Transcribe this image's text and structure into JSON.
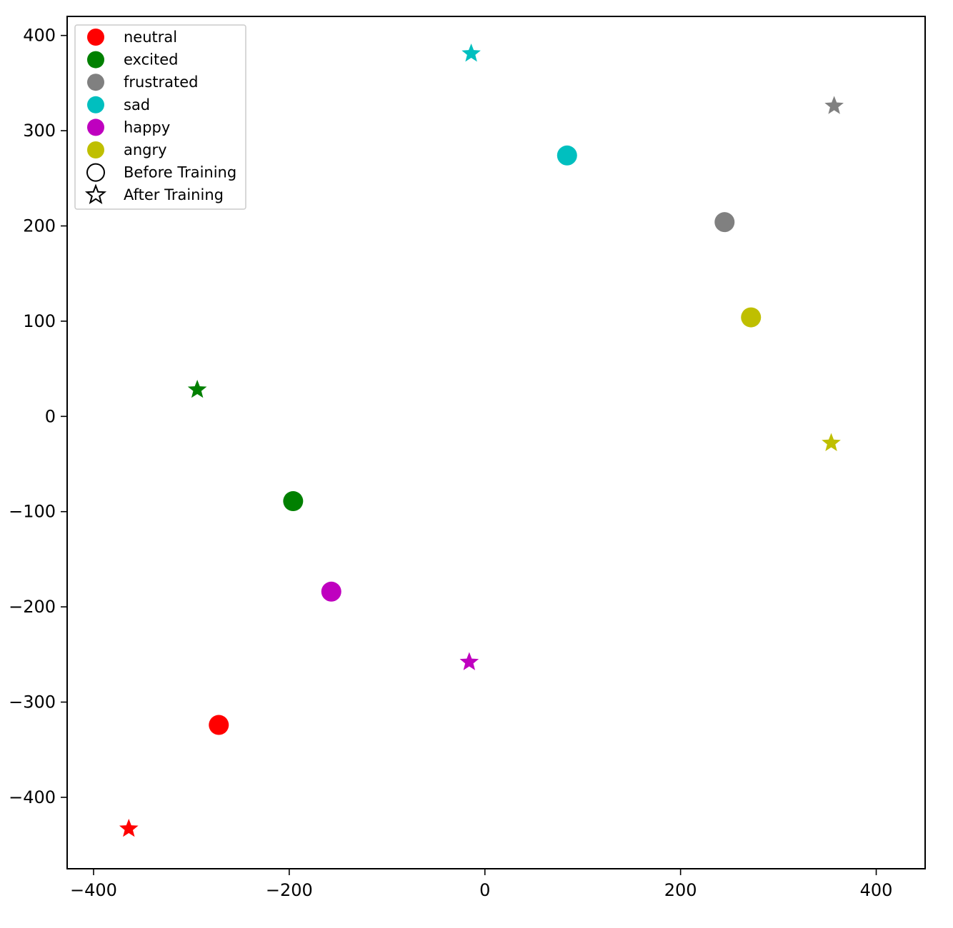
{
  "chart_data": {
    "type": "scatter",
    "title": "",
    "xlabel": "",
    "ylabel": "",
    "xlim": [
      -427,
      450
    ],
    "ylim": [
      -475,
      420
    ],
    "xticks": [
      -400,
      -200,
      0,
      200,
      400
    ],
    "yticks": [
      400,
      300,
      200,
      100,
      0,
      -100,
      -200,
      -300,
      -400
    ],
    "xtick_labels": [
      "−400",
      "−200",
      "0",
      "200",
      "400"
    ],
    "ytick_labels": [
      "400",
      "300",
      "200",
      "100",
      "0",
      "−100",
      "−200",
      "−300",
      "−400"
    ],
    "grid": false,
    "legend_position": "top-left",
    "series": [
      {
        "name": "neutral",
        "color": "#ff0000",
        "before": [
          -272,
          -324
        ],
        "after": [
          -364,
          -433
        ]
      },
      {
        "name": "excited",
        "color": "#008000",
        "before": [
          -196,
          -89
        ],
        "after": [
          -294,
          28
        ]
      },
      {
        "name": "frustrated",
        "color": "#808080",
        "before": [
          245,
          204
        ],
        "after": [
          357,
          326
        ]
      },
      {
        "name": "sad",
        "color": "#00bfbf",
        "before": [
          84,
          274
        ],
        "after": [
          -14,
          381
        ]
      },
      {
        "name": "happy",
        "color": "#bf00bf",
        "before": [
          -157,
          -184
        ],
        "after": [
          -16,
          -258
        ]
      },
      {
        "name": "angry",
        "color": "#bfbf00",
        "before": [
          272,
          104
        ],
        "after": [
          354,
          -28
        ]
      }
    ],
    "marker_legend": [
      {
        "name": "Before Training",
        "marker": "circle"
      },
      {
        "name": "After Training",
        "marker": "star"
      }
    ]
  }
}
